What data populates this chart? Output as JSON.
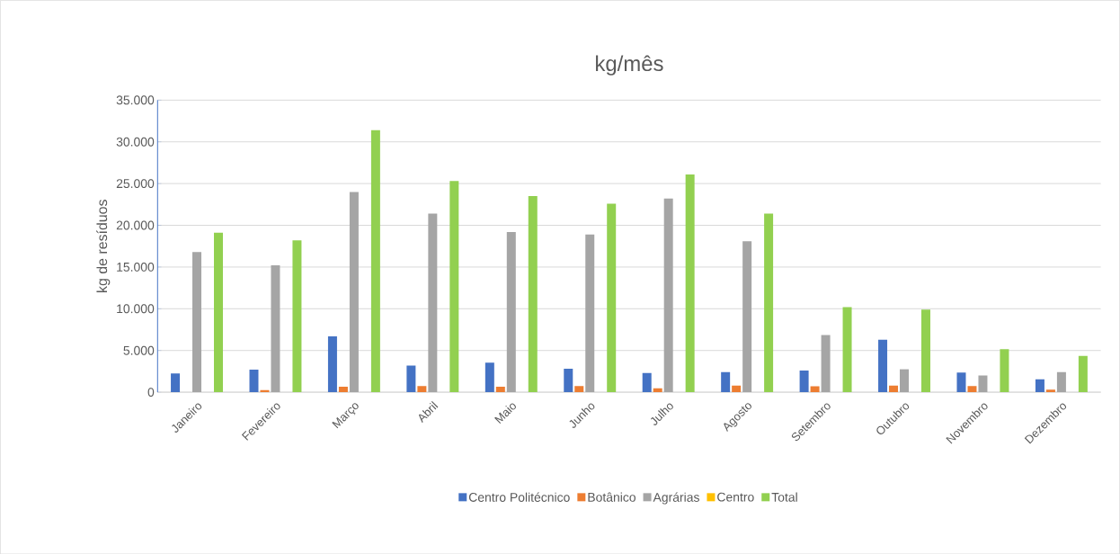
{
  "chart_data": {
    "type": "bar",
    "title": "kg/mês",
    "ylabel": "kg de resíduos",
    "categories": [
      "Janeiro",
      "Fevereiro",
      "Março",
      "Abril",
      "Maio",
      "Junho",
      "Julho",
      "Agosto",
      "Setembro",
      "Outubro",
      "Novembro",
      "Dezembro"
    ],
    "series": [
      {
        "name": "Centro Politécnico",
        "color": "#4472c4",
        "values": [
          2250,
          2700,
          6700,
          3200,
          3550,
          2800,
          2300,
          2400,
          2600,
          6300,
          2350,
          1550
        ]
      },
      {
        "name": "Botânico",
        "color": "#ed7d31",
        "values": [
          0,
          250,
          650,
          750,
          650,
          750,
          470,
          800,
          700,
          800,
          750,
          300
        ]
      },
      {
        "name": "Agrárias",
        "color": "#a5a5a5",
        "values": [
          16800,
          15200,
          24000,
          21400,
          19200,
          18900,
          23200,
          18100,
          6850,
          2750,
          2000,
          2400
        ]
      },
      {
        "name": "Centro",
        "color": "#ffc000",
        "values": [
          0,
          0,
          0,
          0,
          0,
          0,
          0,
          0,
          0,
          0,
          0,
          0
        ]
      },
      {
        "name": "Total",
        "color": "#92d050",
        "values": [
          19100,
          18200,
          31400,
          25300,
          23500,
          22600,
          26100,
          21400,
          10200,
          9900,
          5150,
          4350
        ]
      }
    ],
    "ylim": [
      0,
      35000
    ],
    "yticks": [
      {
        "value": 0,
        "label": "0"
      },
      {
        "value": 5000,
        "label": "5.000"
      },
      {
        "value": 10000,
        "label": "10.000"
      },
      {
        "value": 15000,
        "label": "15.000"
      },
      {
        "value": 20000,
        "label": "20.000"
      },
      {
        "value": 25000,
        "label": "25.000"
      },
      {
        "value": 30000,
        "label": "30.000"
      },
      {
        "value": 35000,
        "label": "35.000"
      }
    ],
    "grid": "y",
    "legend": "bottom"
  }
}
